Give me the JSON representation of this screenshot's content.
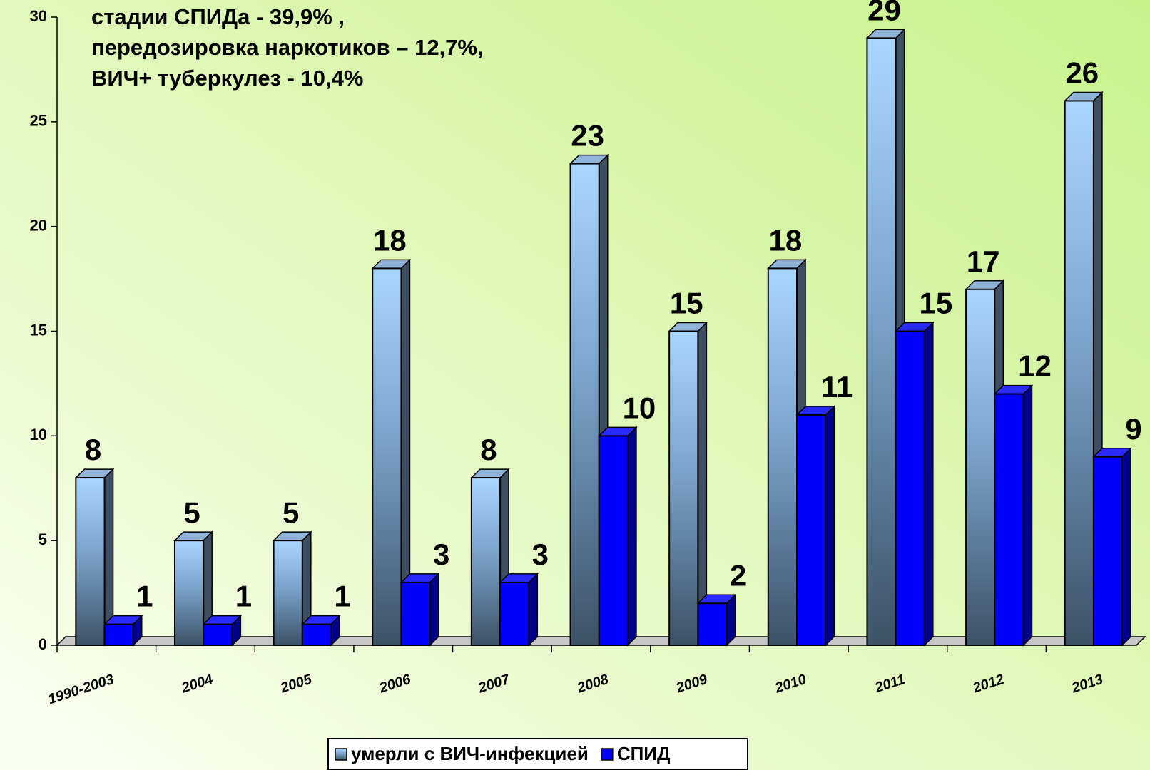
{
  "chart_data": {
    "type": "bar3d",
    "annotations": [
      "стадии СПИДа - 39,9% ,",
      "передозировка наркотиков – 12,7%,",
      "ВИЧ+ туберкулез - 10,4%"
    ],
    "categories": [
      "1990-2003",
      "2004",
      "2005",
      "2006",
      "2007",
      "2008",
      "2009",
      "2010",
      "2011",
      "2012",
      "2013"
    ],
    "series": [
      {
        "name": "умерли с ВИЧ-инфекцией",
        "color": "#7aa3cc",
        "values": [
          8,
          5,
          5,
          18,
          8,
          23,
          15,
          18,
          29,
          17,
          26
        ]
      },
      {
        "name": "СПИД",
        "color": "#0000ff",
        "values": [
          1,
          1,
          1,
          3,
          3,
          10,
          2,
          11,
          15,
          12,
          9
        ]
      }
    ],
    "ylim": [
      0,
      30
    ],
    "yticks": [
      0,
      5,
      10,
      15,
      20,
      25,
      30
    ],
    "legend": "bottom"
  }
}
